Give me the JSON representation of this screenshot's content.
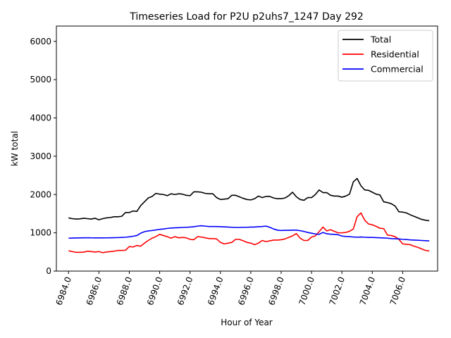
{
  "chart_data": {
    "type": "line",
    "title": "Timeseries Load for P2U p2uhs7_1247  Day 292",
    "xlabel": "Hour of Year",
    "ylabel": "kW total",
    "xlim": [
      6983.2,
      7008.3
    ],
    "ylim": [
      0,
      6400
    ],
    "x_ticks": [
      6984,
      6986,
      6988,
      6990,
      6992,
      6994,
      6996,
      6998,
      7000,
      7002,
      7004,
      7006
    ],
    "x_tick_labels": [
      "6984.0",
      "6986.0",
      "6988.0",
      "6990.0",
      "6992.0",
      "6994.0",
      "6996.0",
      "6998.0",
      "7000.0",
      "7002.0",
      "7004.0",
      "7006.0"
    ],
    "y_ticks": [
      0,
      1000,
      2000,
      3000,
      4000,
      5000,
      6000
    ],
    "y_tick_labels": [
      "0",
      "1000",
      "2000",
      "3000",
      "4000",
      "5000",
      "6000"
    ],
    "legend_position": "top-right",
    "x_start": 6984.0,
    "x_step": 0.25,
    "series": [
      {
        "name": "Total",
        "color": "#000000",
        "values": [
          1390,
          1370,
          1360,
          1365,
          1380,
          1370,
          1360,
          1380,
          1340,
          1370,
          1390,
          1400,
          1420,
          1420,
          1430,
          1530,
          1530,
          1570,
          1560,
          1710,
          1810,
          1910,
          1950,
          2030,
          2010,
          2000,
          1970,
          2020,
          2000,
          2020,
          2010,
          1980,
          1970,
          2070,
          2070,
          2060,
          2030,
          2020,
          2020,
          1920,
          1870,
          1880,
          1890,
          1980,
          1980,
          1940,
          1900,
          1870,
          1860,
          1890,
          1960,
          1920,
          1950,
          1950,
          1910,
          1890,
          1890,
          1910,
          1970,
          2060,
          1940,
          1870,
          1850,
          1920,
          1920,
          2000,
          2120,
          2050,
          2050,
          1980,
          1960,
          1960,
          1930,
          1960,
          2010,
          2330,
          2420,
          2230,
          2120,
          2110,
          2060,
          2010,
          1990,
          1810,
          1790,
          1760,
          1700,
          1550,
          1540,
          1520,
          1470,
          1430,
          1390,
          1350,
          1330,
          1315
        ]
      },
      {
        "name": "Residential",
        "color": "#ff0000",
        "values": [
          530,
          510,
          490,
          490,
          495,
          520,
          510,
          500,
          510,
          480,
          500,
          510,
          520,
          540,
          540,
          545,
          640,
          630,
          670,
          650,
          730,
          800,
          860,
          900,
          960,
          930,
          900,
          860,
          900,
          870,
          880,
          870,
          830,
          820,
          900,
          890,
          870,
          850,
          850,
          840,
          750,
          710,
          730,
          750,
          830,
          830,
          790,
          750,
          730,
          690,
          730,
          800,
          770,
          790,
          810,
          810,
          820,
          840,
          880,
          920,
          980,
          860,
          800,
          800,
          890,
          920,
          1030,
          1150,
          1050,
          1080,
          1040,
          1000,
          1000,
          1010,
          1040,
          1100,
          1420,
          1520,
          1330,
          1230,
          1210,
          1170,
          1120,
          1110,
          940,
          930,
          900,
          830,
          710,
          700,
          690,
          650,
          620,
          580,
          540,
          525
        ]
      },
      {
        "name": "Commercial",
        "color": "#0000ff",
        "values": [
          860,
          863,
          866,
          868,
          870,
          870,
          869,
          868,
          868,
          868,
          869,
          871,
          873,
          876,
          880,
          885,
          895,
          910,
          930,
          990,
          1030,
          1050,
          1060,
          1075,
          1090,
          1100,
          1115,
          1125,
          1130,
          1135,
          1140,
          1145,
          1150,
          1160,
          1175,
          1185,
          1175,
          1165,
          1165,
          1165,
          1160,
          1155,
          1150,
          1145,
          1140,
          1140,
          1145,
          1145,
          1150,
          1150,
          1160,
          1165,
          1175,
          1145,
          1100,
          1070,
          1060,
          1065,
          1065,
          1070,
          1070,
          1055,
          1035,
          1010,
          990,
          970,
          960,
          1010,
          975,
          965,
          960,
          950,
          915,
          905,
          900,
          890,
          885,
          890,
          885,
          880,
          880,
          875,
          870,
          865,
          860,
          850,
          845,
          840,
          830,
          825,
          815,
          810,
          805,
          800,
          795,
          790
        ]
      }
    ]
  }
}
